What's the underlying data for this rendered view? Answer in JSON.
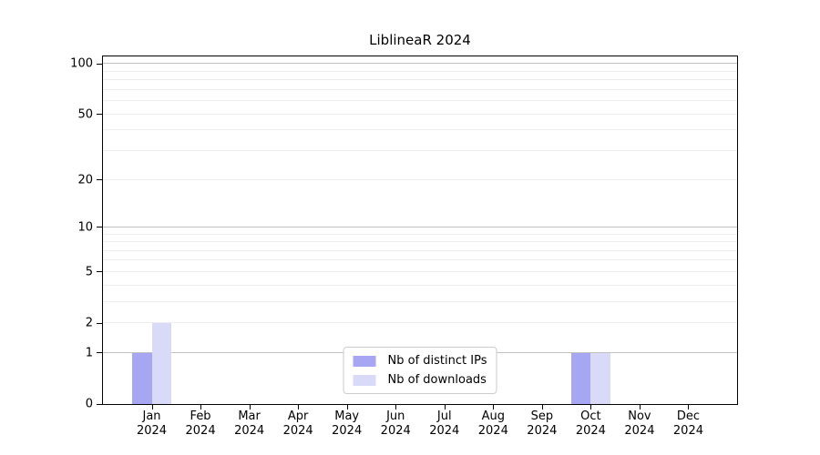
{
  "chart_data": {
    "type": "bar",
    "title": "LiblineaR 2024",
    "categories": [
      "Jan",
      "Feb",
      "Mar",
      "Apr",
      "May",
      "Jun",
      "Jul",
      "Aug",
      "Sep",
      "Oct",
      "Nov",
      "Dec"
    ],
    "year_label": "2024",
    "series": [
      {
        "name": "Nb of distinct IPs",
        "color": "#a6a6f2",
        "values": [
          1,
          0,
          0,
          0,
          0,
          0,
          0,
          0,
          0,
          1,
          0,
          0
        ]
      },
      {
        "name": "Nb of downloads",
        "color": "#d9d9f8",
        "values": [
          2,
          0,
          0,
          0,
          0,
          0,
          0,
          0,
          0,
          1,
          0,
          0
        ]
      }
    ],
    "yscale": "log1p",
    "ylim": [
      0,
      111
    ],
    "yticks": [
      0,
      1,
      2,
      5,
      10,
      20,
      50,
      100
    ],
    "major_gridlines": [
      1,
      10,
      100
    ],
    "minor_gridlines": [
      2,
      3,
      4,
      5,
      6,
      7,
      8,
      9,
      20,
      30,
      40,
      50,
      60,
      70,
      80,
      90
    ],
    "grid": true,
    "legend_position": "lower center",
    "xlabel": "",
    "ylabel": "",
    "colors": {
      "axis": "#000000",
      "text": "#000000",
      "major_grid": "#c2c2c2",
      "minor_grid": "#ededed",
      "legend_border": "#cccccc",
      "background": "#ffffff"
    }
  }
}
